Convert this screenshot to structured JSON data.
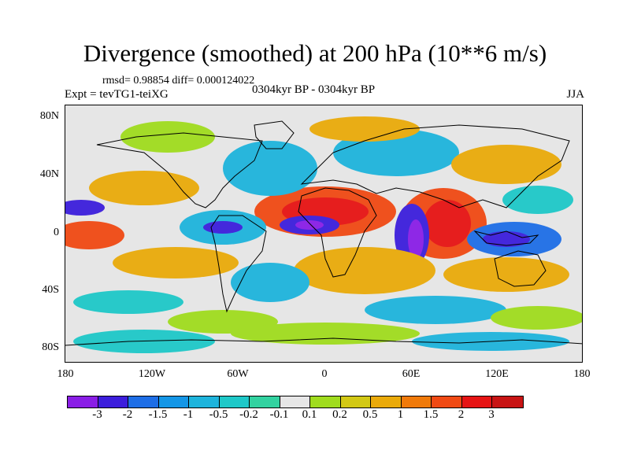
{
  "title": "Divergence (smoothed) at 200 hPa (10**6 m/s)",
  "stats": "rmsd= 0.98854 diff= 0.000124022",
  "experiment": "Expt = tevTG1-teiXG",
  "period": "0304kyr BP - 0304kyr BP",
  "season": "JJA",
  "lat_labels": [
    "80N",
    "40N",
    "0",
    "40S",
    "80S"
  ],
  "lon_labels": [
    "180",
    "120W",
    "60W",
    "0",
    "60E",
    "120E",
    "180"
  ],
  "colorbar": {
    "labels": [
      "-3",
      "-2",
      "-1.5",
      "-1",
      "-0.5",
      "-0.2",
      "-0.1",
      "0.1",
      "0.2",
      "0.5",
      "1",
      "1.5",
      "2",
      "3"
    ],
    "colors": [
      "#8a1ee6",
      "#3c1edc",
      "#1e6ee6",
      "#1496e6",
      "#1eb4dc",
      "#1ec8c8",
      "#32d2a0",
      "#e6e6e6",
      "#a0dc1e",
      "#d2c814",
      "#eaaa0a",
      "#f07a0a",
      "#f04a14",
      "#e61414",
      "#c81414"
    ]
  },
  "colors": {
    "ocean": "#e6e6e6",
    "land_outline": "#000000"
  }
}
